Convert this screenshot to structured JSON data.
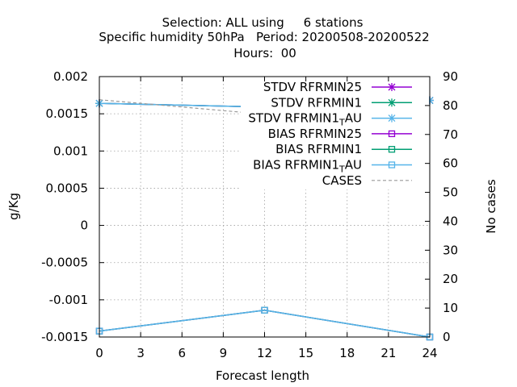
{
  "title_lines": [
    "Selection: ALL using     6 stations",
    "Specific humidity 50hPa   Period: 20200508-20200522",
    "Hours:  00"
  ],
  "chart_data": {
    "type": "line",
    "xlabel": "Forecast length",
    "ylabel": "g/Kg",
    "y2label": "No cases",
    "xlim": [
      0,
      24
    ],
    "ylim": [
      -0.0015,
      0.002
    ],
    "y2lim": [
      0,
      90
    ],
    "x_ticks": [
      "0",
      "3",
      "6",
      "9",
      "12",
      "15",
      "18",
      "21",
      "24"
    ],
    "y_ticks": [
      "-0.0015",
      "-0.001",
      "-0.0005",
      "0",
      "0.0005",
      "0.001",
      "0.0015",
      "0.002"
    ],
    "y2_ticks": [
      "0",
      "10",
      "20",
      "30",
      "40",
      "50",
      "60",
      "70",
      "80",
      "90"
    ],
    "grid": true,
    "legend_position": "top-right",
    "series": [
      {
        "name": "STDV RFRMIN25",
        "axis": "y",
        "color": "#9400d3",
        "marker": "star",
        "dash": "solid",
        "x": [
          0,
          12,
          24
        ],
        "values": [
          0.00164,
          0.00159,
          0.00168
        ]
      },
      {
        "name": "STDV RFRMIN1",
        "axis": "y",
        "color": "#009e73",
        "marker": "star",
        "dash": "solid",
        "x": [
          0,
          12,
          24
        ],
        "values": [
          0.00164,
          0.00159,
          0.00168
        ]
      },
      {
        "name": "STDV RFRMIN1_T AU",
        "axis": "y",
        "color": "#56b4e9",
        "marker": "star",
        "dash": "solid",
        "x": [
          0,
          12,
          24
        ],
        "values": [
          0.00164,
          0.00159,
          0.00168
        ]
      },
      {
        "name": "BIAS RFRMIN25",
        "axis": "y",
        "color": "#9400d3",
        "marker": "square",
        "dash": "solid",
        "x": [
          0,
          12,
          24
        ],
        "values": [
          -0.00142,
          -0.00114,
          -0.0015
        ]
      },
      {
        "name": "BIAS RFRMIN1",
        "axis": "y",
        "color": "#009e73",
        "marker": "square",
        "dash": "solid",
        "x": [
          0,
          12,
          24
        ],
        "values": [
          -0.00142,
          -0.00114,
          -0.0015
        ]
      },
      {
        "name": "BIAS RFRMIN1_T AU",
        "axis": "y",
        "color": "#56b4e9",
        "marker": "square",
        "dash": "solid",
        "x": [
          0,
          12,
          24
        ],
        "values": [
          -0.00142,
          -0.00114,
          -0.0015
        ]
      },
      {
        "name": "CASES",
        "axis": "y2",
        "color": "#999999",
        "marker": "none",
        "dash": "dashed",
        "x": [
          0,
          12,
          24
        ],
        "values": [
          82,
          77,
          82
        ]
      }
    ]
  }
}
